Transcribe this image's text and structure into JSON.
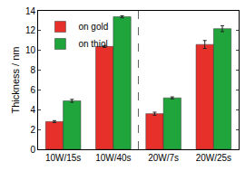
{
  "chart_data": {
    "type": "bar",
    "y_label": "Thickness / nm",
    "categories": [
      "10W/15s",
      "10W/40s",
      "20W/7s",
      "20W/25s"
    ],
    "series": [
      {
        "name": "on gold",
        "color": "#e8302a",
        "values": [
          2.8,
          10.4,
          3.6,
          10.6
        ],
        "errors": [
          0.1,
          0.1,
          0.15,
          0.4
        ]
      },
      {
        "name": "on thiol",
        "color": "#1fa53c",
        "values": [
          4.9,
          13.4,
          5.2,
          12.2
        ],
        "errors": [
          0.15,
          0.1,
          0.1,
          0.3
        ]
      }
    ],
    "ylim": [
      0,
      14
    ],
    "yticks": [
      0,
      2,
      4,
      6,
      8,
      10,
      12,
      14
    ],
    "legend": "top-left",
    "grid": false
  }
}
